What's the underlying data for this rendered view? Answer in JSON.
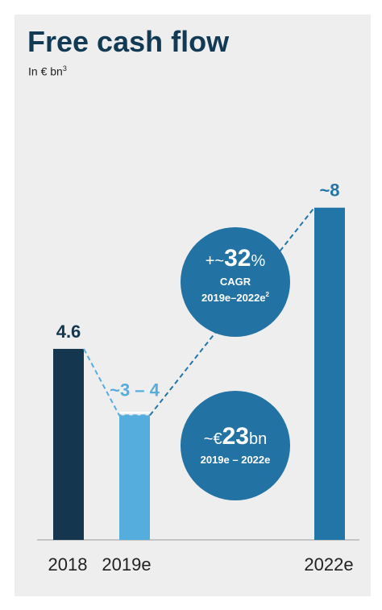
{
  "page": {
    "title": "Free cash flow",
    "subtitle": "In € bn",
    "subtitle_note": "3"
  },
  "chart_data": {
    "type": "bar",
    "categories": [
      "2018",
      "2019e",
      "2022e"
    ],
    "values": [
      4.6,
      3.5,
      8
    ],
    "ranges": [
      null,
      [
        3,
        4
      ],
      null
    ],
    "data_labels": [
      "4.6",
      "~3 – 4",
      "~8"
    ],
    "colors": [
      "#14374f",
      "#55addd",
      "#2275a7"
    ],
    "ylim": [
      0,
      8.15
    ],
    "grid": false,
    "annotations": [
      {
        "id": "cagr",
        "prefix": "+~",
        "value": "32",
        "suffix": "%",
        "line1": "CAGR",
        "line2": "2019e–2022e",
        "line2_note": "2",
        "fill": "#2272a3"
      },
      {
        "id": "total",
        "prefix": "~€",
        "value": "23",
        "suffix": "bn",
        "line1": "2019e – 2022e",
        "fill": "#2272a3"
      }
    ]
  }
}
